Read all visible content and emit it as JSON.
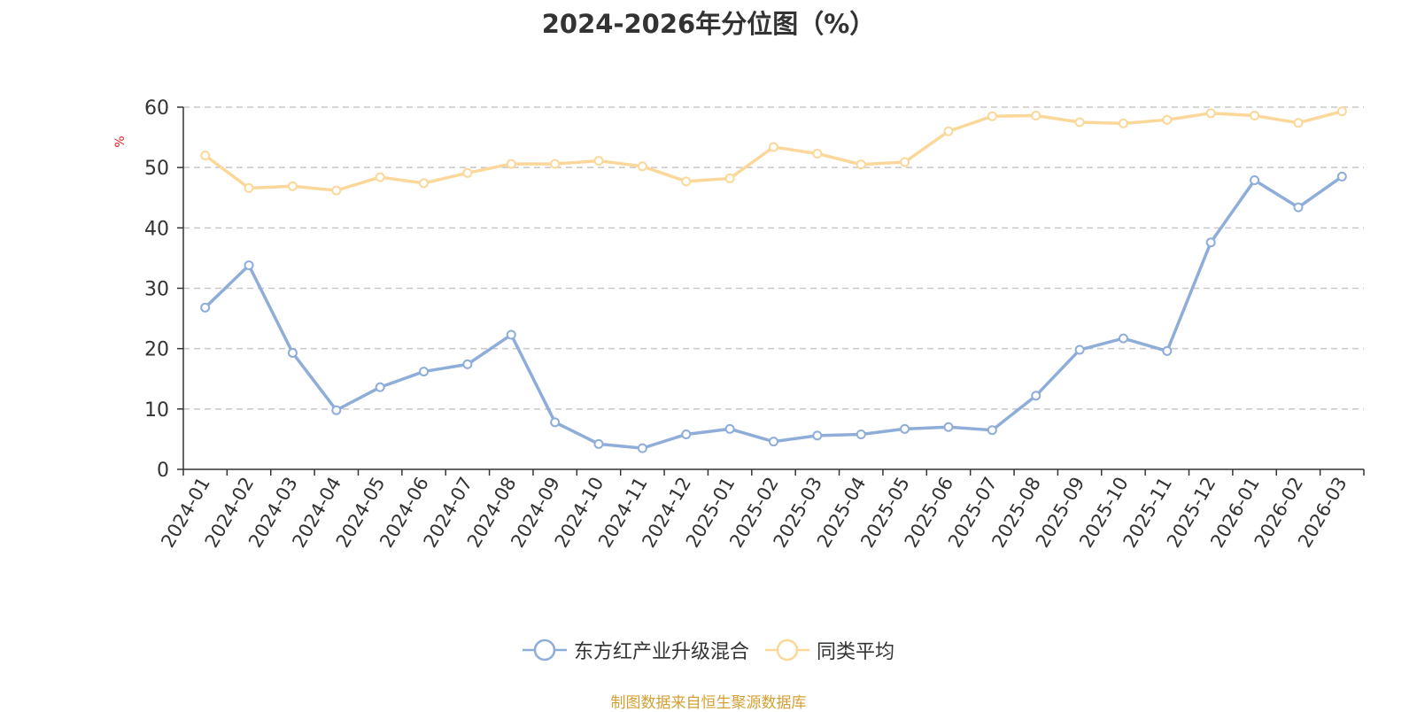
{
  "title": "2024-2026年分位图（%）",
  "chart_data": {
    "type": "line",
    "title": "2024-2026年分位图（%）",
    "ylabel": "%",
    "xlabel": "",
    "ylim": [
      0,
      60
    ],
    "yticks": [
      0,
      10,
      20,
      30,
      40,
      50,
      60
    ],
    "grid": true,
    "legend_position": "bottom",
    "categories": [
      "2024-01",
      "2024-02",
      "2024-03",
      "2024-04",
      "2024-05",
      "2024-06",
      "2024-07",
      "2024-08",
      "2024-09",
      "2024-10",
      "2024-11",
      "2024-12",
      "2025-01",
      "2025-02",
      "2025-03",
      "2025-04",
      "2025-05",
      "2025-06",
      "2025-07",
      "2025-08",
      "2025-09",
      "2025-10",
      "2025-11",
      "2025-12",
      "2026-01",
      "2026-02",
      "2026-03"
    ],
    "series": [
      {
        "name": "东方红产业升级混合",
        "color": "#8eadd9",
        "values": [
          26.8,
          33.8,
          19.3,
          9.8,
          13.6,
          16.2,
          17.4,
          22.3,
          7.8,
          4.2,
          3.5,
          5.8,
          6.7,
          4.6,
          5.6,
          5.8,
          6.7,
          7.0,
          6.5,
          12.2,
          19.8,
          21.7,
          19.6,
          37.6,
          47.9,
          43.4,
          48.5
        ]
      },
      {
        "name": "同类平均",
        "color": "#fbd89a",
        "values": [
          52.0,
          46.6,
          46.9,
          46.2,
          48.4,
          47.4,
          49.1,
          50.6,
          50.6,
          51.1,
          50.2,
          47.7,
          48.2,
          53.4,
          52.3,
          50.5,
          50.9,
          56.0,
          58.5,
          58.6,
          57.5,
          57.3,
          57.9,
          59.0,
          58.6,
          57.4,
          59.3
        ]
      }
    ]
  },
  "footer": {
    "source": "制图数据来自恒生聚源数据库"
  }
}
